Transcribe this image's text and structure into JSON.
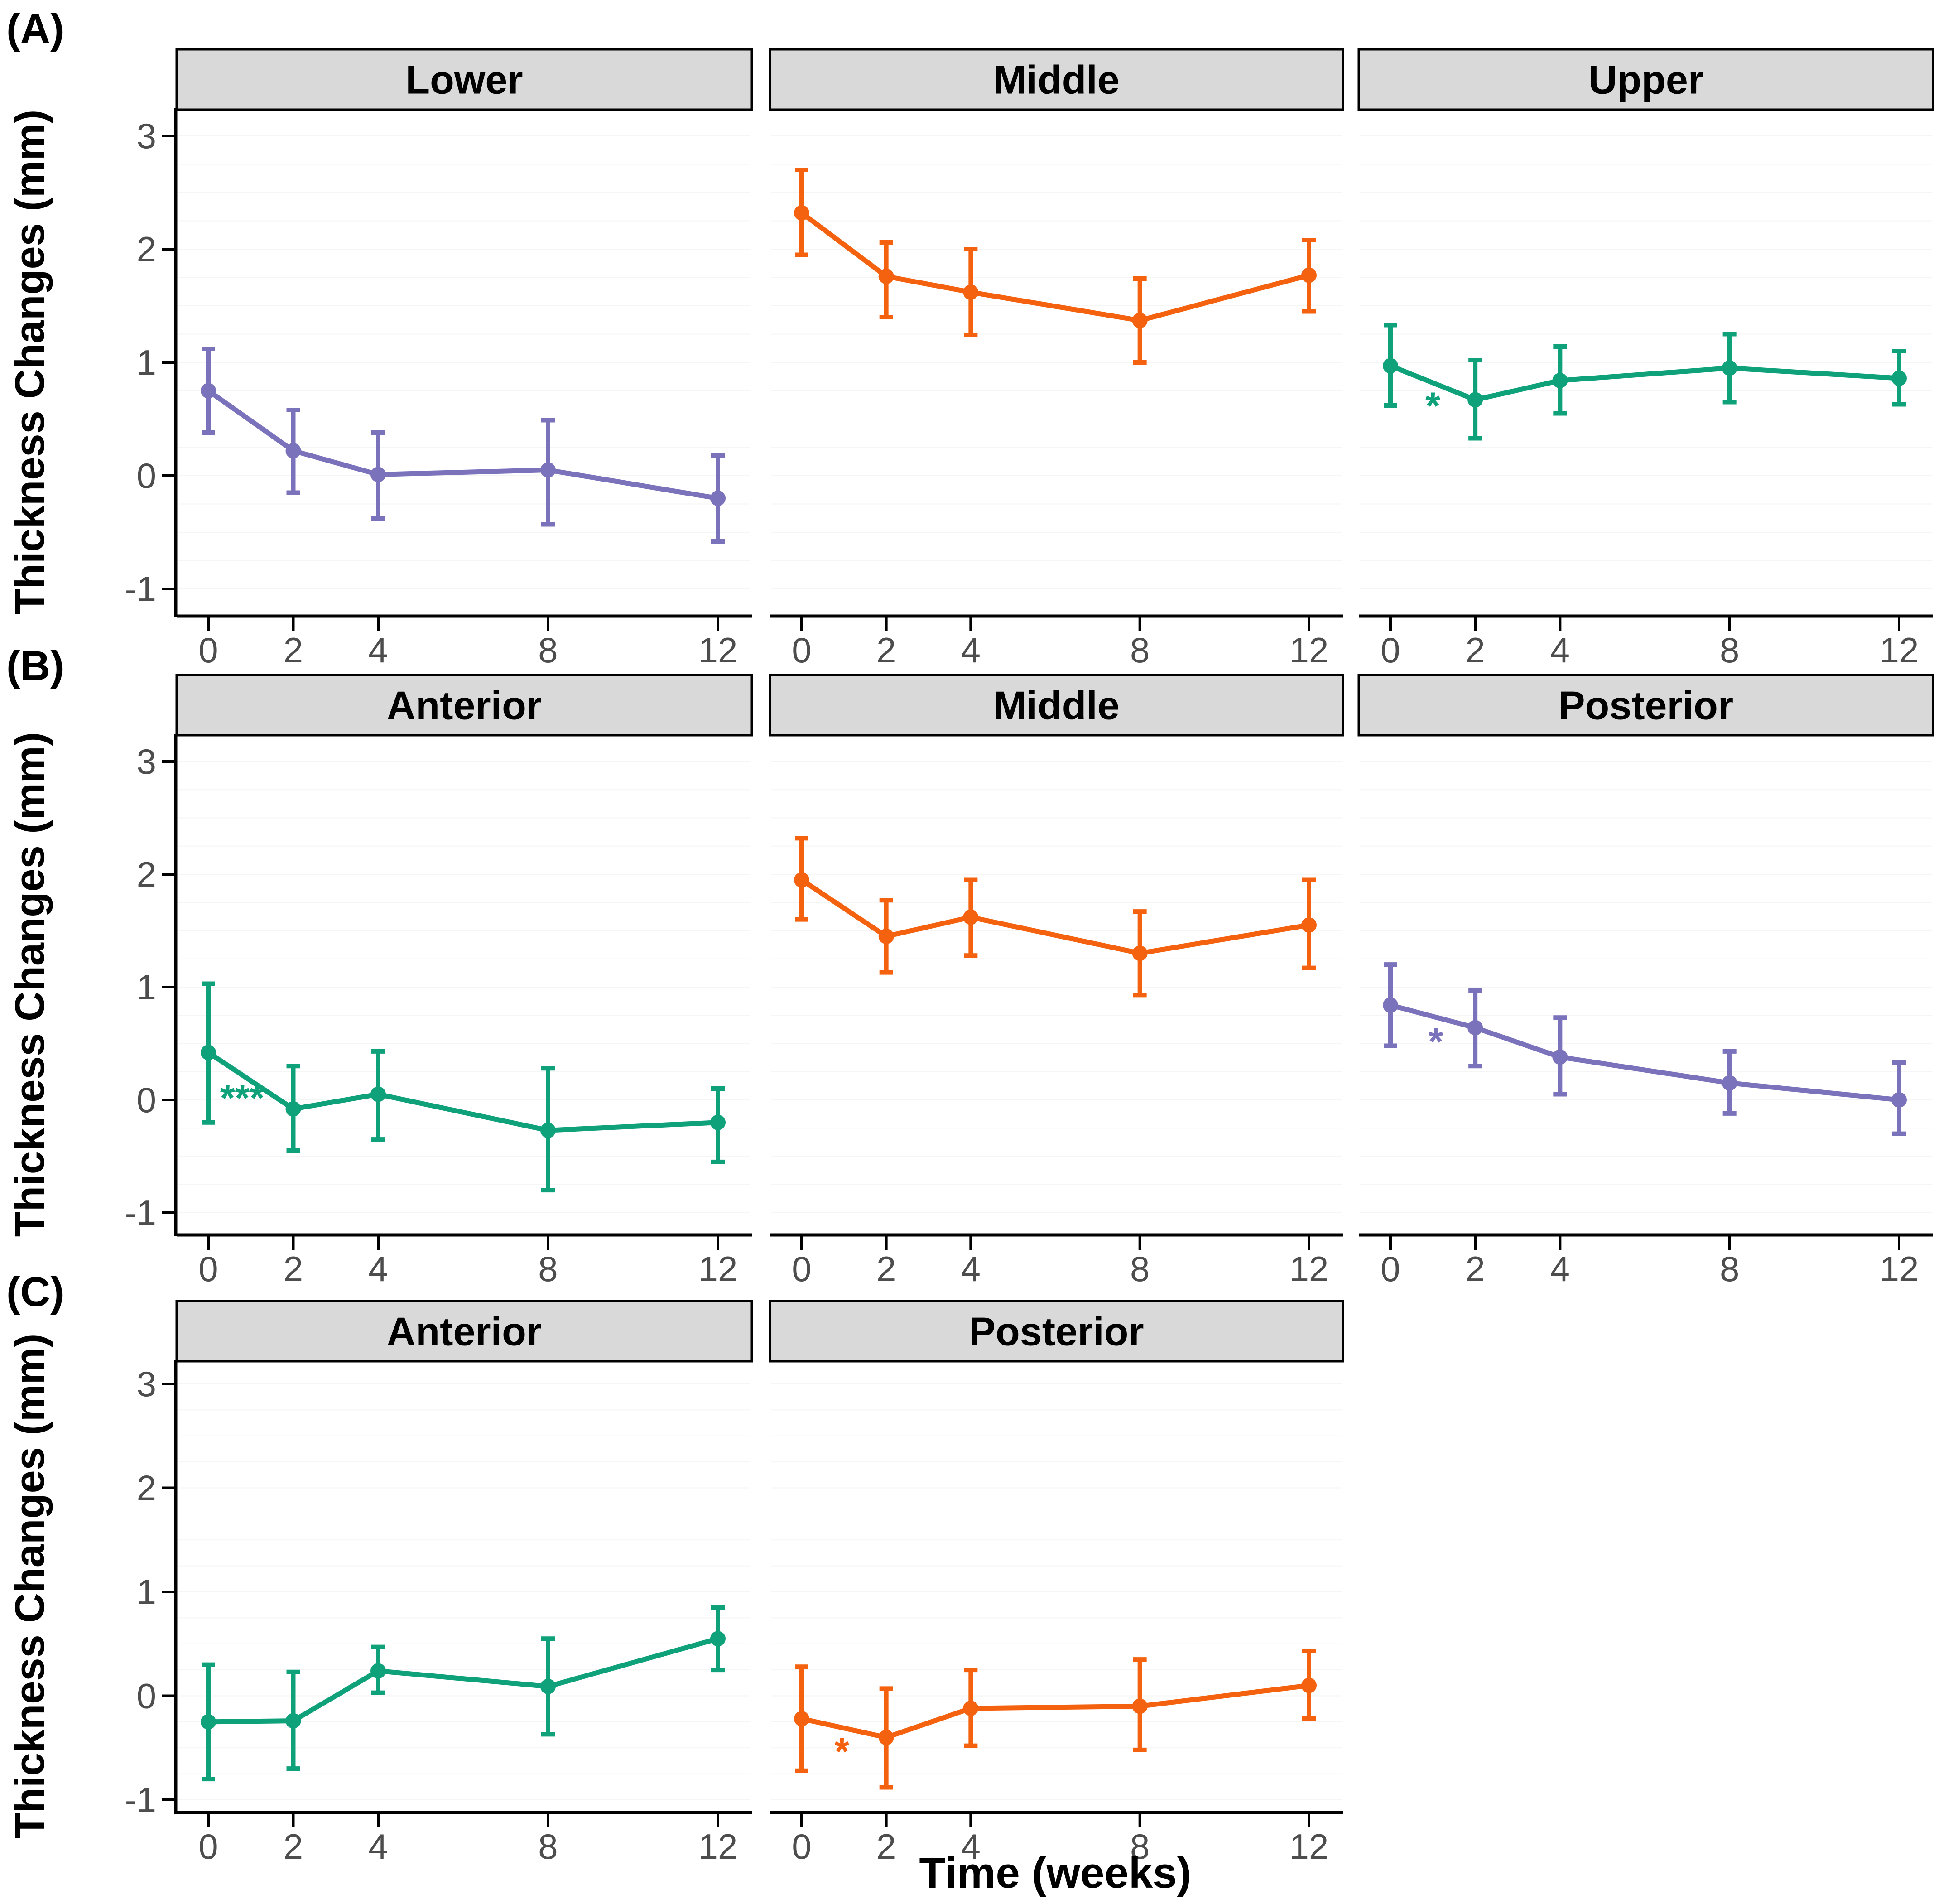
{
  "chart_data": {
    "type": "line",
    "title": "",
    "xlabel": "Time (weeks)",
    "ylabel": "Thickness Changes (mm)",
    "x_ticks": [
      0,
      2,
      4,
      8,
      12
    ],
    "y_ticks": [
      3,
      2,
      1,
      0,
      -1
    ],
    "xlim": [
      -0.9,
      12.9
    ],
    "ylim": [
      -1.3,
      3.3
    ],
    "grid": "very faint horizontal lines",
    "legend": "none",
    "error_bars": true,
    "strip_fill": "#D9D9D9",
    "tick_label_color": "#4D4D4D",
    "rows": [
      {
        "label": "(A)",
        "panels": [
          {
            "facet": "Lower",
            "color": "#7A72BB",
            "points": [
              {
                "x": 0,
                "y": 0.75,
                "lo": 0.38,
                "hi": 1.12
              },
              {
                "x": 2,
                "y": 0.22,
                "lo": -0.15,
                "hi": 0.58
              },
              {
                "x": 4,
                "y": 0.01,
                "lo": -0.38,
                "hi": 0.38
              },
              {
                "x": 8,
                "y": 0.05,
                "lo": -0.43,
                "hi": 0.49
              },
              {
                "x": 12,
                "y": -0.2,
                "lo": -0.58,
                "hi": 0.18
              }
            ],
            "annotation": null
          },
          {
            "facet": "Middle",
            "color": "#F4620F",
            "points": [
              {
                "x": 0,
                "y": 2.32,
                "lo": 1.95,
                "hi": 2.7
              },
              {
                "x": 2,
                "y": 1.76,
                "lo": 1.4,
                "hi": 2.06
              },
              {
                "x": 4,
                "y": 1.62,
                "lo": 1.24,
                "hi": 2.0
              },
              {
                "x": 8,
                "y": 1.37,
                "lo": 1.0,
                "hi": 1.74
              },
              {
                "x": 12,
                "y": 1.77,
                "lo": 1.45,
                "hi": 2.08
              }
            ],
            "annotation": null
          },
          {
            "facet": "Upper",
            "color": "#0EA17A",
            "points": [
              {
                "x": 0,
                "y": 0.97,
                "lo": 0.62,
                "hi": 1.33
              },
              {
                "x": 2,
                "y": 0.67,
                "lo": 0.33,
                "hi": 1.02
              },
              {
                "x": 4,
                "y": 0.84,
                "lo": 0.55,
                "hi": 1.14
              },
              {
                "x": 8,
                "y": 0.95,
                "lo": 0.65,
                "hi": 1.25
              },
              {
                "x": 12,
                "y": 0.86,
                "lo": 0.63,
                "hi": 1.1
              }
            ],
            "annotation": {
              "text": "*",
              "x": 1.0,
              "y": 0.63
            }
          }
        ]
      },
      {
        "label": "(B)",
        "panels": [
          {
            "facet": "Anterior",
            "color": "#0EA17A",
            "points": [
              {
                "x": 0,
                "y": 0.42,
                "lo": -0.2,
                "hi": 1.03
              },
              {
                "x": 2,
                "y": -0.08,
                "lo": -0.45,
                "hi": 0.3
              },
              {
                "x": 4,
                "y": 0.05,
                "lo": -0.35,
                "hi": 0.43
              },
              {
                "x": 8,
                "y": -0.27,
                "lo": -0.8,
                "hi": 0.28
              },
              {
                "x": 12,
                "y": -0.2,
                "lo": -0.55,
                "hi": 0.1
              }
            ],
            "annotation": {
              "text": "***",
              "x": 0.8,
              "y": 0.03
            }
          },
          {
            "facet": "Middle",
            "color": "#F4620F",
            "points": [
              {
                "x": 0,
                "y": 1.95,
                "lo": 1.6,
                "hi": 2.32
              },
              {
                "x": 2,
                "y": 1.45,
                "lo": 1.13,
                "hi": 1.77
              },
              {
                "x": 4,
                "y": 1.62,
                "lo": 1.28,
                "hi": 1.95
              },
              {
                "x": 8,
                "y": 1.3,
                "lo": 0.93,
                "hi": 1.67
              },
              {
                "x": 12,
                "y": 1.55,
                "lo": 1.17,
                "hi": 1.95
              }
            ],
            "annotation": null
          },
          {
            "facet": "Posterior",
            "color": "#7A72BB",
            "points": [
              {
                "x": 0,
                "y": 0.84,
                "lo": 0.48,
                "hi": 1.2
              },
              {
                "x": 2,
                "y": 0.64,
                "lo": 0.3,
                "hi": 0.97
              },
              {
                "x": 4,
                "y": 0.38,
                "lo": 0.05,
                "hi": 0.73
              },
              {
                "x": 8,
                "y": 0.15,
                "lo": -0.12,
                "hi": 0.43
              },
              {
                "x": 12,
                "y": 0.0,
                "lo": -0.3,
                "hi": 0.33
              }
            ],
            "annotation": {
              "text": "*",
              "x": 1.07,
              "y": 0.53
            }
          }
        ]
      },
      {
        "label": "(C)",
        "panels": [
          {
            "facet": "Anterior",
            "color": "#0EA17A",
            "points": [
              {
                "x": 0,
                "y": -0.25,
                "lo": -0.8,
                "hi": 0.3
              },
              {
                "x": 2,
                "y": -0.24,
                "lo": -0.7,
                "hi": 0.23
              },
              {
                "x": 4,
                "y": 0.24,
                "lo": 0.03,
                "hi": 0.47
              },
              {
                "x": 8,
                "y": 0.09,
                "lo": -0.37,
                "hi": 0.55
              },
              {
                "x": 12,
                "y": 0.55,
                "lo": 0.25,
                "hi": 0.85
              }
            ],
            "annotation": null
          },
          {
            "facet": "Posterior",
            "color": "#F4620F",
            "points": [
              {
                "x": 0,
                "y": -0.22,
                "lo": -0.72,
                "hi": 0.28
              },
              {
                "x": 2,
                "y": -0.4,
                "lo": -0.88,
                "hi": 0.07
              },
              {
                "x": 4,
                "y": -0.12,
                "lo": -0.48,
                "hi": 0.25
              },
              {
                "x": 8,
                "y": -0.1,
                "lo": -0.52,
                "hi": 0.35
              },
              {
                "x": 12,
                "y": 0.1,
                "lo": -0.22,
                "hi": 0.43
              }
            ],
            "annotation": {
              "text": "*",
              "x": 0.95,
              "y": -0.52
            }
          }
        ]
      }
    ]
  }
}
